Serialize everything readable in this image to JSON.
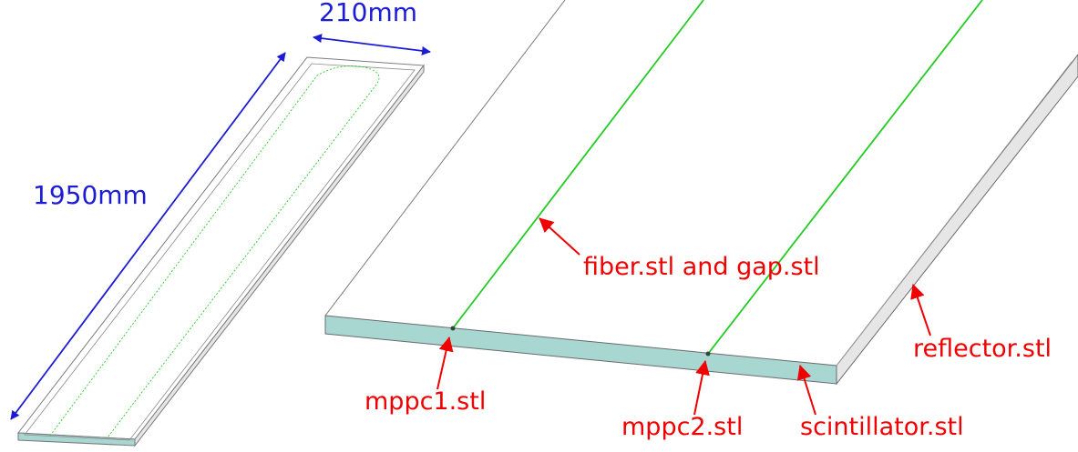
{
  "dimensions": {
    "width_label": "210mm",
    "length_label": "1950mm",
    "color": "#1c1cd4"
  },
  "callouts": {
    "fiber": "fiber.stl and gap.stl",
    "reflector": "reflector.stl",
    "mppc1": "mppc1.stl",
    "mppc2": "mppc2.stl",
    "scintillator": "scintillator.stl",
    "color": "#f00000"
  },
  "colors": {
    "fiber": "#22cc22",
    "scintillator_face": "#a8d6d0",
    "reflector_face": "#e6e6e6",
    "outline": "#6b6b6b"
  }
}
